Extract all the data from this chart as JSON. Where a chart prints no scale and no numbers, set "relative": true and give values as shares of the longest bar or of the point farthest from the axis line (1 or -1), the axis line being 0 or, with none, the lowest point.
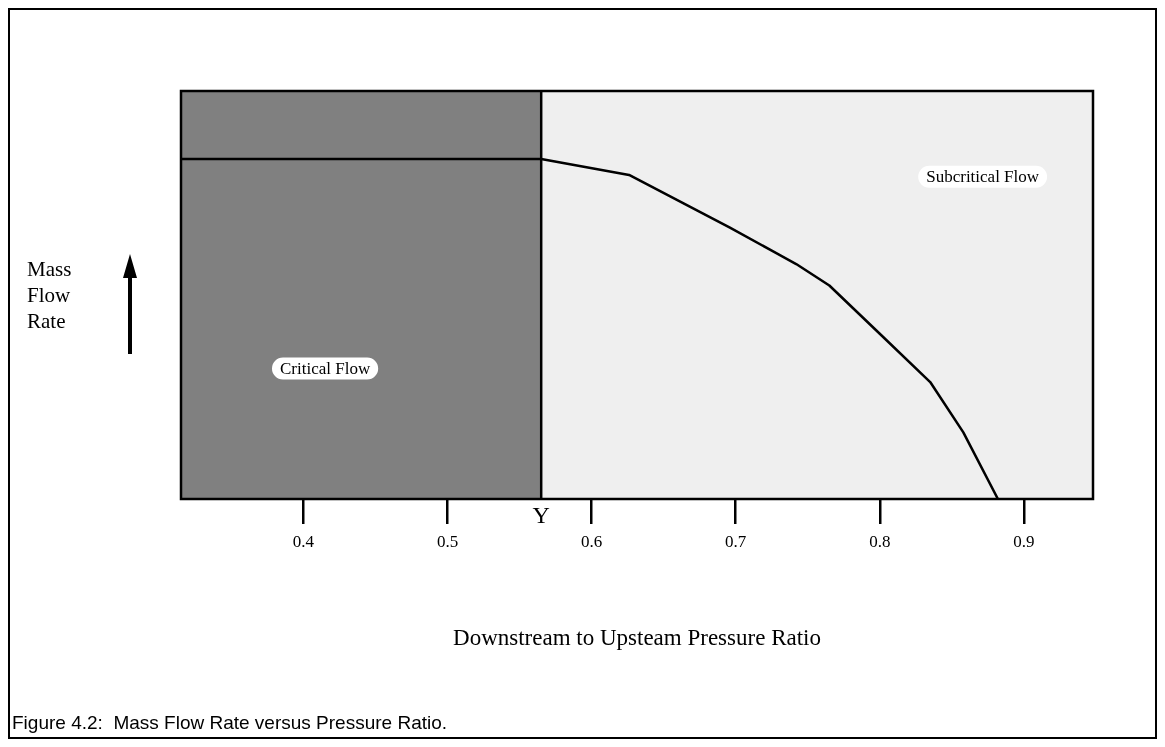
{
  "chart_data": {
    "type": "line",
    "relative": true,
    "xlabel": "Downstream to Upsteam Pressure Ratio",
    "xlim": [
      0.315,
      0.948
    ],
    "xticks": [
      0.4,
      0.5,
      0.6,
      0.7,
      0.8,
      0.9
    ],
    "marker": "none",
    "legend": false,
    "series": [
      {
        "color": "#000000",
        "x": [
          0.315,
          0.565,
          0.626,
          0.696,
          0.742,
          0.765,
          0.8,
          0.835,
          0.858,
          0.882
        ],
        "values": [
          1,
          1,
          0.953,
          0.798,
          0.691,
          0.628,
          0.486,
          0.344,
          0.196,
          0
        ]
      }
    ],
    "bands": [
      {
        "axis": "x",
        "from": 0.315,
        "to": 0.565,
        "label": "Critical Flow",
        "color": "#808080"
      },
      {
        "axis": "x",
        "from": 0.565,
        "to": 0.948,
        "label": "Subcritical Flow",
        "color": "#efefef"
      }
    ],
    "ref_lines": [
      {
        "axis": "x",
        "value": 0.565,
        "label": "Y",
        "color": "#000000"
      }
    ],
    "annotations": [
      "Mass Flow Rate",
      "Figure 4.2:  Mass Flow Rate versus Pressure Ratio."
    ]
  }
}
